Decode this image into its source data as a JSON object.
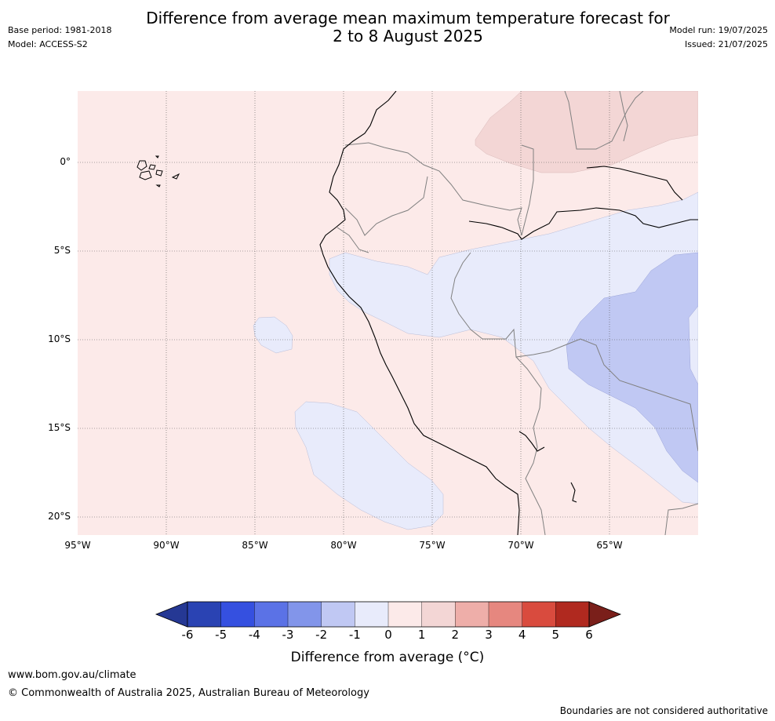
{
  "title": {
    "line1": "Difference from average mean maximum temperature forecast for",
    "line2": "2 to 8 August 2025"
  },
  "meta_left": {
    "base_period": "Base period: 1981-2018",
    "model": "Model: ACCESS-S2"
  },
  "meta_right": {
    "model_run": "Model run: 19/07/2025",
    "issued": "Issued: 21/07/2025"
  },
  "map": {
    "latitude_labels": [
      "0°",
      "5°S",
      "10°S",
      "15°S",
      "20°S"
    ],
    "longitude_labels": [
      "95°W",
      "90°W",
      "85°W",
      "80°W",
      "75°W",
      "70°W",
      "65°W"
    ],
    "extent": {
      "lon": [
        -95,
        -60
      ],
      "lat": [
        -21,
        4
      ]
    },
    "gridlines": true,
    "anomaly_regions": [
      {
        "level": "0 to 1",
        "description": "background"
      },
      {
        "level": "1 to 2",
        "area": "northern Amazon / Colombia"
      },
      {
        "level": "-1 to 0",
        "area": "Peru / western Brazil / Bolivia and offshore Pacific"
      },
      {
        "level": "-2 to -1",
        "area": "western Brazil / northern Bolivia"
      }
    ]
  },
  "colorbar": {
    "ticks": [
      "-6",
      "-5",
      "-4",
      "-3",
      "-2",
      "-1",
      "0",
      "1",
      "2",
      "3",
      "4",
      "5",
      "6"
    ],
    "colors": [
      "#253894",
      "#2a43b3",
      "#3550e0",
      "#5b72e6",
      "#8295ea",
      "#c0c8f3",
      "#e8ebfb",
      "#fceae9",
      "#f3d6d5",
      "#eeaea9",
      "#e6877f",
      "#d94b3e",
      "#b0291f",
      "#7a1f1a"
    ],
    "label": "Difference from average (°C)"
  },
  "footer": {
    "url": "www.bom.gov.au/climate",
    "copyright": "© Commonwealth of Australia 2025, Australian Bureau of Meteorology",
    "disclaimer": "Boundaries are not considered authoritative"
  }
}
